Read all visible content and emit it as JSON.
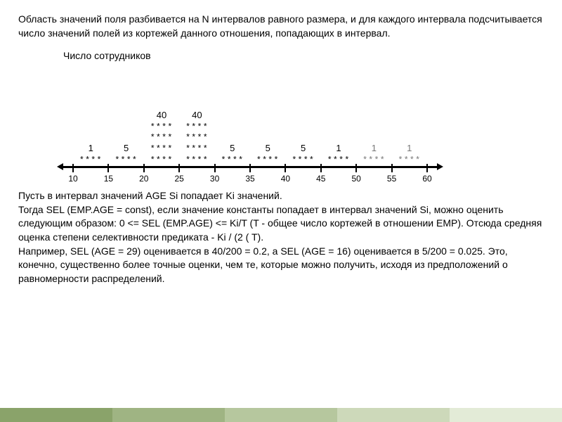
{
  "intro": "Область значений поля разбивается на N интервалов равного размера, и для каждого интервала подсчитывается число значений полей из кортежей данного отношения, попадающих в интервал.",
  "chart": {
    "title": "Число сотрудников",
    "x_ticks": [
      10,
      15,
      20,
      25,
      30,
      35,
      40,
      45,
      50,
      55,
      60
    ],
    "bars": [
      {
        "center": 12.5,
        "value": 1,
        "rows": 1,
        "faint": false
      },
      {
        "center": 17.5,
        "value": 5,
        "rows": 1,
        "faint": false
      },
      {
        "center": 22.5,
        "value": 40,
        "rows": 4,
        "faint": false
      },
      {
        "center": 27.5,
        "value": 40,
        "rows": 4,
        "faint": false
      },
      {
        "center": 32.5,
        "value": 5,
        "rows": 1,
        "faint": false
      },
      {
        "center": 37.5,
        "value": 5,
        "rows": 1,
        "faint": false
      },
      {
        "center": 42.5,
        "value": 5,
        "rows": 1,
        "faint": false
      },
      {
        "center": 47.5,
        "value": 1,
        "rows": 1,
        "faint": false
      },
      {
        "center": 52.5,
        "value": 1,
        "rows": 1,
        "faint": true
      },
      {
        "center": 57.5,
        "value": 1,
        "rows": 1,
        "faint": true
      }
    ],
    "x_min": 10,
    "x_max": 60,
    "glyph": "****",
    "faint_color": "#777777"
  },
  "outro": "Пусть в интервал значений AGE Si попадает Ki значений.\nТогда SEL (EMP.AGE = const), если значение константы попадает в интервал значений Si, можно оценить следующим образом: 0 <= SEL (EMP.AGE) <= Ki/T (T - общее число кортежей в отношении EMP). Отсюда средняя оценка степени селективности предиката - Ki / (2 ( T).\nНапример, SEL (AGE = 29) оценивается в 40/200 = 0.2, а SEL (AGE = 16) оценивается в 5/200 = 0.025. Это, конечно, существенно более точные оценки, чем те, которые можно получить, исходя из предположений о равномерности распределений.",
  "footer_colors": [
    "#8aa36a",
    "#9fb483",
    "#b6c79e",
    "#cdd9ba",
    "#e3ebd7"
  ]
}
